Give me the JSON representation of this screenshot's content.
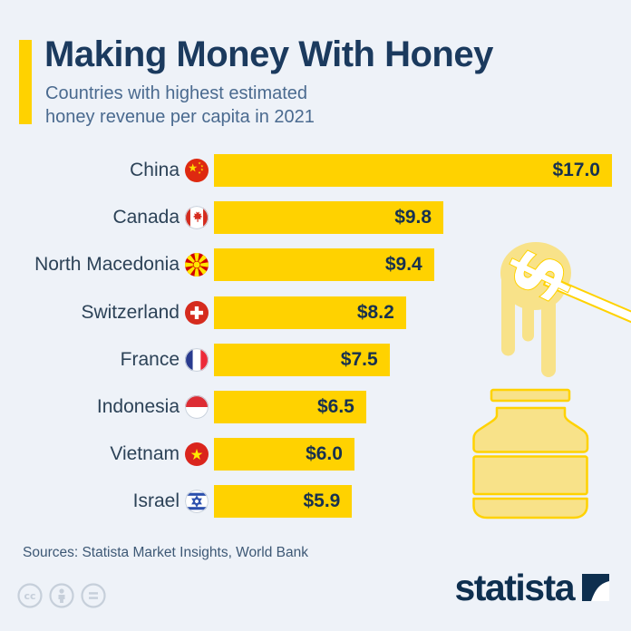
{
  "header": {
    "title": "Making Money With Honey",
    "subtitle_line1": "Countries with highest estimated",
    "subtitle_line2": "honey revenue per capita in 2021"
  },
  "chart_data": {
    "type": "bar",
    "orientation": "horizontal",
    "title": "Making Money With Honey",
    "subtitle": "Countries with highest estimated honey revenue per capita in 2021",
    "unit": "USD honey revenue per capita, 2021",
    "categories": [
      "China",
      "Canada",
      "North Macedonia",
      "Switzerland",
      "France",
      "Indonesia",
      "Vietnam",
      "Israel"
    ],
    "values": [
      17.0,
      9.8,
      9.4,
      8.2,
      7.5,
      6.5,
      6.0,
      5.9
    ],
    "value_labels": [
      "$17.0",
      "$9.8",
      "$9.4",
      "$8.2",
      "$7.5",
      "$6.5",
      "$6.0",
      "$5.9"
    ],
    "flag_icons": [
      "flag-china",
      "flag-canada",
      "flag-north-macedonia",
      "flag-switzerland",
      "flag-france",
      "flag-indonesia",
      "flag-vietnam",
      "flag-israel"
    ],
    "xlim": [
      0,
      17
    ],
    "bar_color": "#ffd200",
    "grid": false,
    "legend": false
  },
  "footer": {
    "sources": "Sources: Statista Market Insights, World Bank",
    "license_icons": [
      "cc-icon",
      "attribution-icon",
      "equal-icon"
    ],
    "brand": "statista"
  },
  "colors": {
    "background": "#eef2f8",
    "accent_yellow": "#ffd200",
    "navy": "#1b3a5e",
    "subtitle_blue": "#4a6a8f",
    "honey_light": "#f8e289"
  }
}
